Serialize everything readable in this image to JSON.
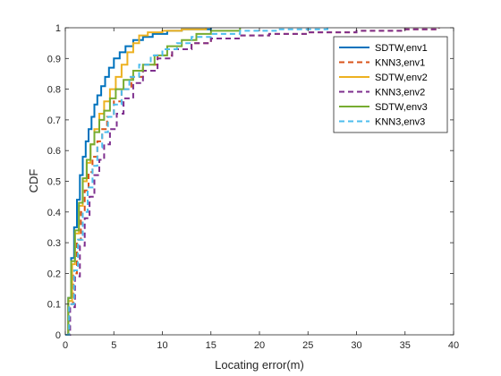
{
  "chart_data": {
    "type": "line",
    "xlabel": "Locating error(m)",
    "ylabel": "CDF",
    "xlim": [
      0,
      40
    ],
    "ylim": [
      0,
      1
    ],
    "xticks": [
      "0",
      "5",
      "10",
      "15",
      "20",
      "25",
      "30",
      "35",
      "40"
    ],
    "yticks": [
      "0",
      "0.1",
      "0.2",
      "0.3",
      "0.4",
      "0.5",
      "0.6",
      "0.7",
      "0.8",
      "0.9",
      "1"
    ],
    "grid": false,
    "legend_position": "top-right",
    "series": [
      {
        "name": "SDTW,env1",
        "color": "#0072BD",
        "dash": "solid",
        "x": [
          0,
          0.3,
          0.6,
          0.9,
          1.2,
          1.5,
          1.8,
          2.1,
          2.4,
          2.7,
          3.0,
          3.3,
          3.7,
          4.1,
          4.5,
          5.0,
          5.6,
          6.2,
          7.0,
          8.0,
          9.0,
          10.5,
          12.0,
          15.0
        ],
        "y": [
          0,
          0.12,
          0.25,
          0.35,
          0.44,
          0.52,
          0.58,
          0.63,
          0.67,
          0.71,
          0.75,
          0.78,
          0.81,
          0.84,
          0.87,
          0.9,
          0.92,
          0.94,
          0.96,
          0.97,
          0.98,
          0.99,
          0.995,
          1.0
        ]
      },
      {
        "name": "KNN3,env1",
        "color": "#D95319",
        "dash": "dashed",
        "x": [
          0,
          0.4,
          0.8,
          1.2,
          1.6,
          2.0,
          2.4,
          2.8,
          3.3,
          3.8,
          4.3,
          5.0,
          5.8,
          6.8,
          8.0,
          9.5,
          11.0,
          13.0,
          15.0,
          18.0,
          21.0,
          25.0,
          30.0,
          35.0,
          38.5
        ],
        "y": [
          0,
          0.1,
          0.2,
          0.31,
          0.4,
          0.47,
          0.53,
          0.58,
          0.63,
          0.67,
          0.71,
          0.76,
          0.8,
          0.84,
          0.88,
          0.91,
          0.93,
          0.95,
          0.965,
          0.975,
          0.98,
          0.985,
          0.99,
          0.995,
          1.0
        ]
      },
      {
        "name": "SDTW,env2",
        "color": "#EDB120",
        "dash": "solid",
        "x": [
          0,
          0.3,
          0.7,
          1.0,
          1.4,
          1.8,
          2.2,
          2.6,
          3.0,
          3.5,
          4.0,
          4.6,
          5.2,
          5.8,
          6.4,
          7.0,
          7.6,
          8.5,
          10.0,
          12.0,
          14.5
        ],
        "y": [
          0,
          0.11,
          0.23,
          0.33,
          0.42,
          0.5,
          0.56,
          0.62,
          0.67,
          0.72,
          0.76,
          0.8,
          0.84,
          0.88,
          0.92,
          0.95,
          0.975,
          0.985,
          0.99,
          0.995,
          1.0
        ]
      },
      {
        "name": "KNN3,env2",
        "color": "#7E2F8E",
        "dash": "dashed",
        "x": [
          0,
          0.5,
          1.0,
          1.5,
          2.0,
          2.5,
          3.0,
          3.5,
          4.0,
          4.6,
          5.3,
          6.0,
          7.0,
          8.0,
          9.5,
          11.0,
          13.0,
          15.0,
          18.0,
          21.0,
          25.0,
          30.0,
          35.0,
          38.5
        ],
        "y": [
          0,
          0.09,
          0.19,
          0.29,
          0.38,
          0.45,
          0.52,
          0.57,
          0.62,
          0.67,
          0.72,
          0.77,
          0.82,
          0.86,
          0.9,
          0.93,
          0.95,
          0.965,
          0.975,
          0.98,
          0.985,
          0.99,
          0.995,
          1.0
        ]
      },
      {
        "name": "SDTW,env3",
        "color": "#77AC30",
        "dash": "solid",
        "x": [
          0,
          0.3,
          0.6,
          1.0,
          1.4,
          1.8,
          2.2,
          2.6,
          3.0,
          3.5,
          4.0,
          4.6,
          5.2,
          6.0,
          7.0,
          8.0,
          9.2,
          10.5,
          12.0,
          13.5,
          15.0,
          18.0
        ],
        "y": [
          0,
          0.12,
          0.24,
          0.34,
          0.43,
          0.51,
          0.57,
          0.62,
          0.66,
          0.7,
          0.73,
          0.77,
          0.8,
          0.83,
          0.86,
          0.88,
          0.91,
          0.94,
          0.96,
          0.98,
          0.99,
          1.0
        ]
      },
      {
        "name": "KNN3,env3",
        "color": "#4DBEEE",
        "dash": "dashed",
        "x": [
          0,
          0.4,
          0.9,
          1.3,
          1.8,
          2.3,
          2.8,
          3.3,
          3.8,
          4.4,
          5.0,
          5.8,
          6.6,
          7.6,
          8.8,
          10.0,
          11.5,
          13.0,
          15.0,
          18.0,
          22.0,
          27.0
        ],
        "y": [
          0,
          0.1,
          0.21,
          0.31,
          0.4,
          0.48,
          0.55,
          0.61,
          0.66,
          0.71,
          0.75,
          0.8,
          0.84,
          0.88,
          0.91,
          0.93,
          0.95,
          0.97,
          0.98,
          0.99,
          0.995,
          1.0
        ]
      }
    ]
  }
}
